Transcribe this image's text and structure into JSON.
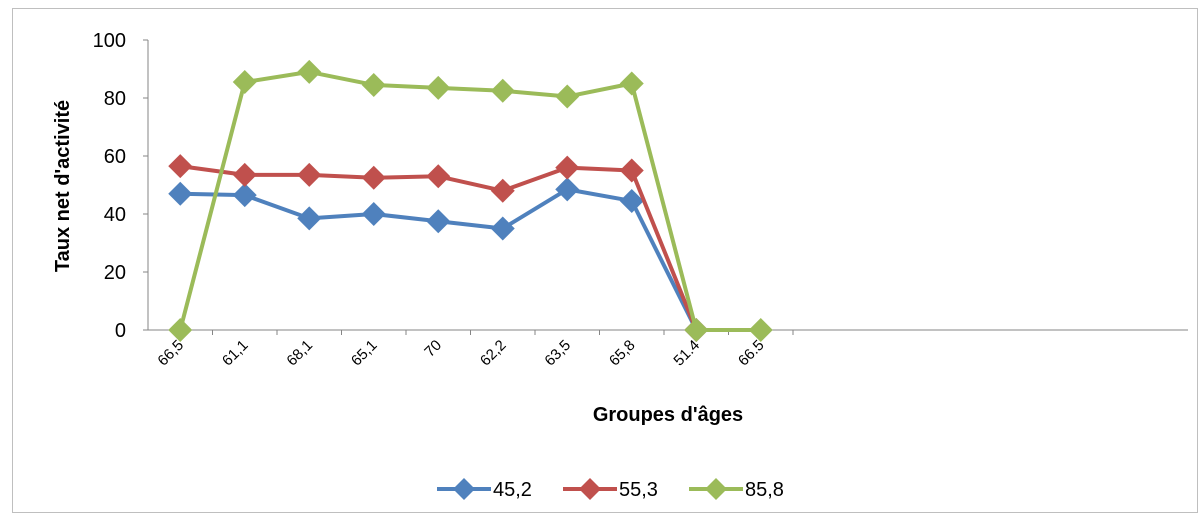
{
  "chart_data": {
    "type": "line",
    "title": "",
    "xlabel": "Groupes d'âges",
    "ylabel": "Taux net d'activité",
    "categories": [
      "66,5",
      "61,1",
      "68,1",
      "65,1",
      "70",
      "62,2",
      "63,5",
      "65,8",
      "51.4",
      "66.5"
    ],
    "ylim": [
      0,
      100
    ],
    "yticks": [
      "0",
      "20",
      "40",
      "60",
      "80",
      "100"
    ],
    "grid": false,
    "legend_position": "bottom",
    "series": [
      {
        "name": "45,2",
        "color": "#4f81bd",
        "values": [
          47,
          46.5,
          38.5,
          40,
          37.5,
          35,
          48.5,
          44.5,
          0,
          null
        ]
      },
      {
        "name": "55,3",
        "color": "#c0504d",
        "values": [
          56.5,
          53.5,
          53.5,
          52.5,
          53,
          48,
          56,
          55,
          0,
          null
        ]
      },
      {
        "name": "85,8",
        "color": "#9bbb59",
        "values": [
          0,
          85.5,
          89,
          84.5,
          83.5,
          82.5,
          80.5,
          85,
          0,
          0
        ]
      }
    ]
  }
}
